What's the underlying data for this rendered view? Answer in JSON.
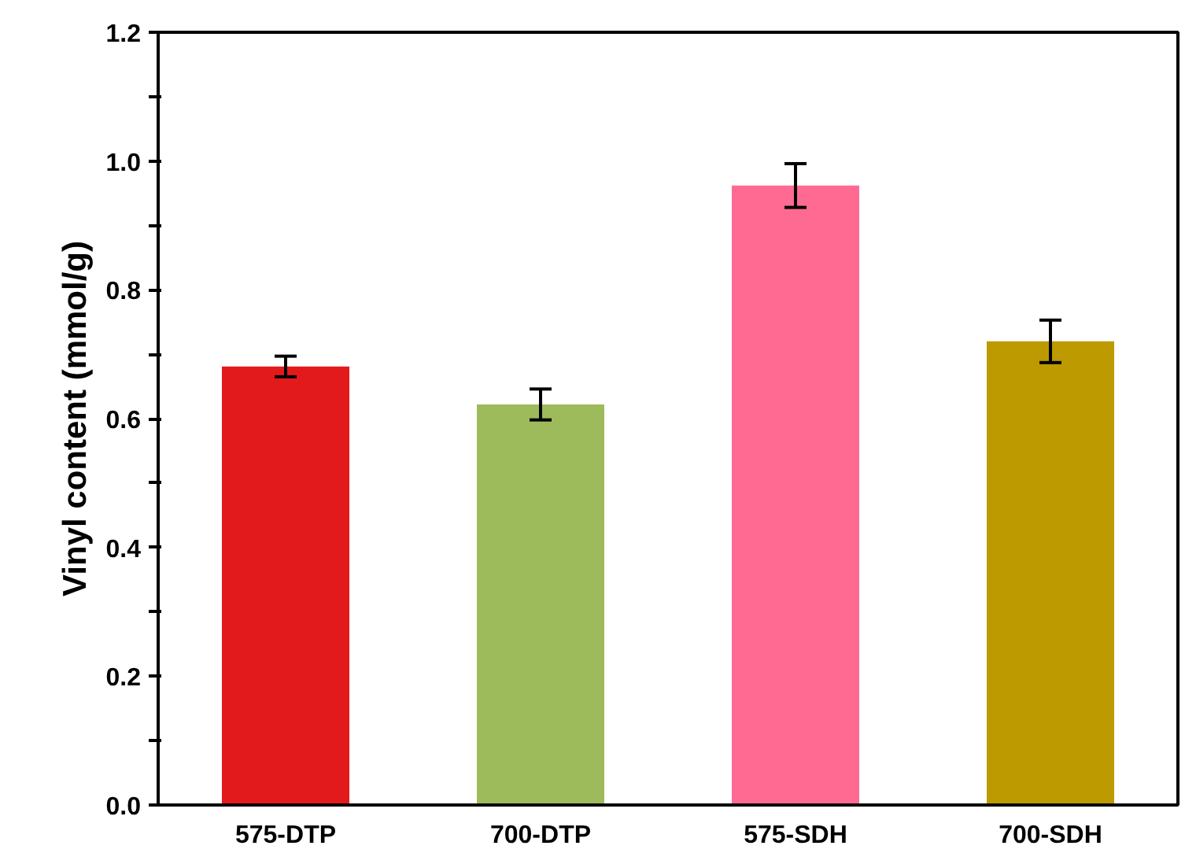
{
  "chart_data": {
    "type": "bar",
    "ylabel": "Vinyl content (mmol/g)",
    "categories": [
      "575-DTP",
      "700-DTP",
      "575-SDH",
      "700-SDH"
    ],
    "values": [
      0.681,
      0.622,
      0.962,
      0.72
    ],
    "errors": [
      0.016,
      0.024,
      0.034,
      0.033
    ],
    "colors": [
      "#e31a1c",
      "#9dbb5a",
      "#ff6a93",
      "#bc9a00"
    ],
    "ylim": [
      0,
      1.2
    ],
    "yticks": [
      {
        "value": 0,
        "label": "0.0"
      },
      {
        "value": 0.1,
        "label": null
      },
      {
        "value": 0.2,
        "label": "0.2"
      },
      {
        "value": 0.3,
        "label": null
      },
      {
        "value": 0.4,
        "label": "0.4"
      },
      {
        "value": 0.5,
        "label": null
      },
      {
        "value": 0.6,
        "label": "0.6"
      },
      {
        "value": 0.7,
        "label": null
      },
      {
        "value": 0.8,
        "label": "0.8"
      },
      {
        "value": 0.9,
        "label": null
      },
      {
        "value": 1,
        "label": "1.0"
      },
      {
        "value": 1.1,
        "label": null
      },
      {
        "value": 1.2,
        "label": "1.2"
      }
    ],
    "grid": false
  }
}
